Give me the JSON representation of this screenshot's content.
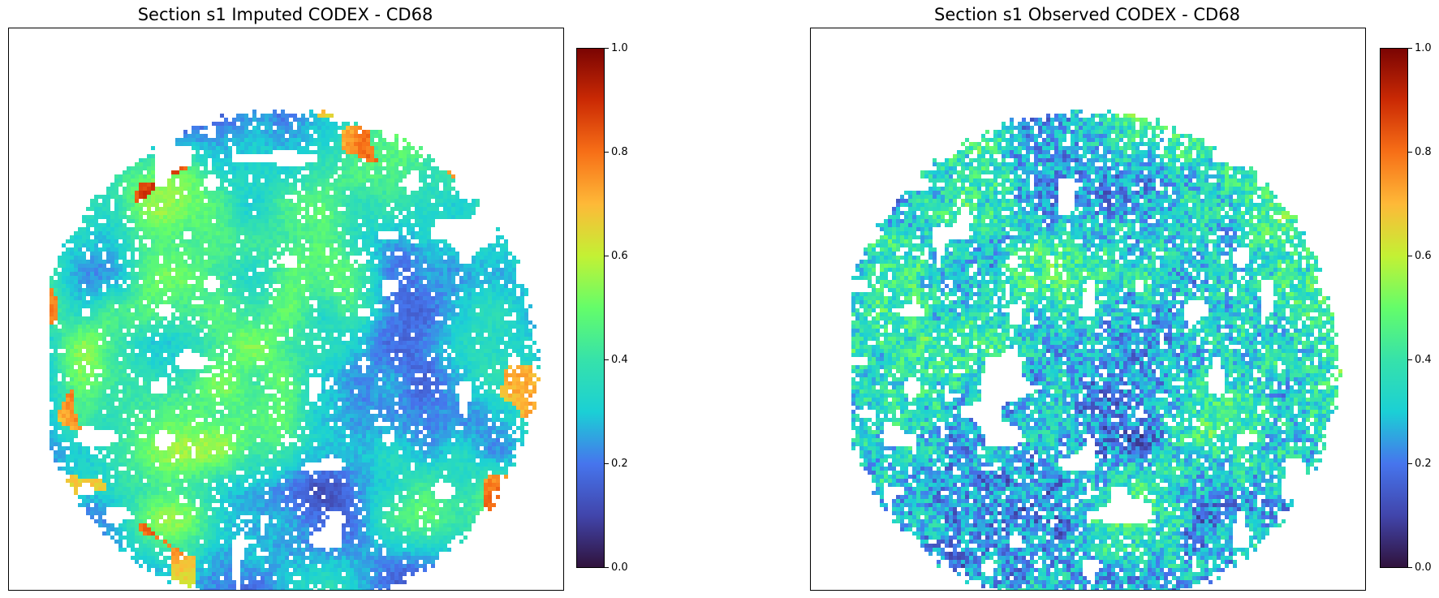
{
  "chart_data": [
    {
      "type": "heatmap",
      "title": "Section s1 Imputed CODEX - CD68",
      "colormap": "turbo",
      "colorbar": {
        "range": [
          0,
          1
        ],
        "ticks": [
          "0.0",
          "0.2",
          "0.4",
          "0.6",
          "0.8",
          "1.0"
        ]
      },
      "axes_visible": false,
      "content": "circular tissue section of per-pixel imputed CD68 intensity; mostly 0.1-0.5 with smooth regional patches, scattered hot spots near 0.8-1.0 at the edges"
    },
    {
      "type": "heatmap",
      "title": "Section s1 Observed CODEX - CD68",
      "colormap": "turbo",
      "colorbar": {
        "range": [
          0,
          1
        ],
        "ticks": [
          "0.0",
          "0.2",
          "0.4",
          "0.6",
          "0.8",
          "1.0"
        ]
      },
      "axes_visible": false,
      "content": "circular tissue section of per-pixel observed CD68 intensity; noisy speckled texture mostly 0.1-0.45"
    }
  ]
}
